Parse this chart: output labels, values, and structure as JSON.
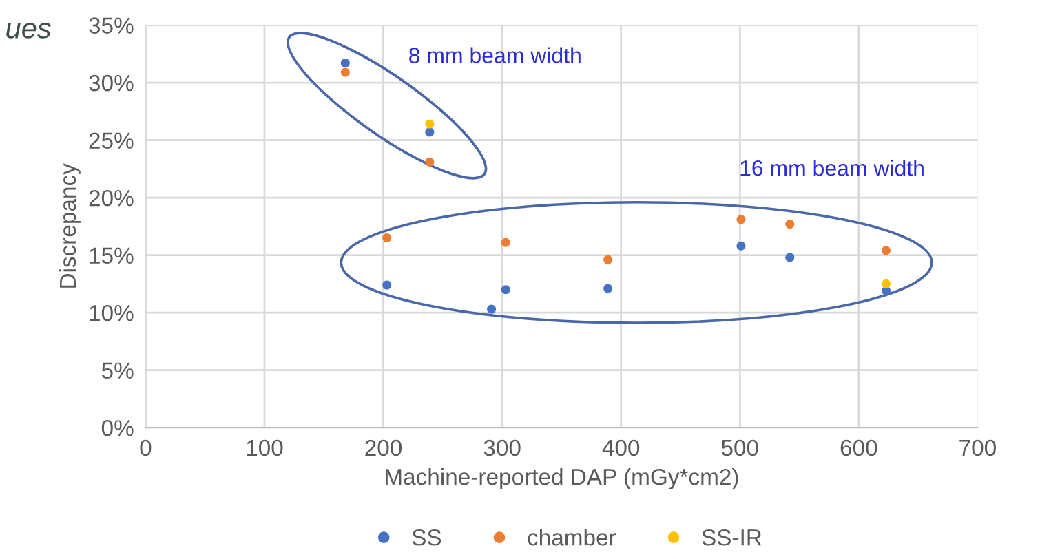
{
  "chart_data": {
    "type": "scatter",
    "xlabel": "Machine-reported DAP (mGy*cm2)",
    "ylabel": "Discrepancy",
    "annotations": [
      "ues",
      "8 mm beam width",
      "16 mm beam width"
    ],
    "series": [
      {
        "name": "SS",
        "color": "#4472c4",
        "x": [
          168,
          239,
          203,
          291,
          303,
          389,
          501,
          542,
          623
        ],
        "values": [
          31.7,
          25.7,
          12.4,
          10.3,
          12.0,
          12.1,
          15.8,
          14.8,
          11.9
        ]
      },
      {
        "name": "chamber",
        "color": "#ed7d31",
        "x": [
          168,
          239,
          203,
          303,
          389,
          501,
          542,
          623
        ],
        "values": [
          30.9,
          23.1,
          16.5,
          16.1,
          14.6,
          18.1,
          17.7,
          15.4
        ]
      },
      {
        "name": "SS-IR",
        "color": "#ffc000",
        "x": [
          239,
          623
        ],
        "values": [
          26.4,
          12.5
        ]
      }
    ],
    "xlim": [
      0,
      700
    ],
    "xticks": [
      0,
      100,
      200,
      300,
      400,
      500,
      600,
      700
    ],
    "ylim": [
      0,
      35
    ],
    "yticks": [
      {
        "value": 0,
        "label": "0%"
      },
      {
        "value": 5,
        "label": "5%"
      },
      {
        "value": 10,
        "label": "10%"
      },
      {
        "value": 15,
        "label": "15%"
      },
      {
        "value": 20,
        "label": "20%"
      },
      {
        "value": 25,
        "label": "25%"
      },
      {
        "value": 30,
        "label": "30%"
      },
      {
        "value": 35,
        "label": "35%"
      }
    ],
    "grid": true,
    "legend": "bottom",
    "marker": "circle"
  }
}
